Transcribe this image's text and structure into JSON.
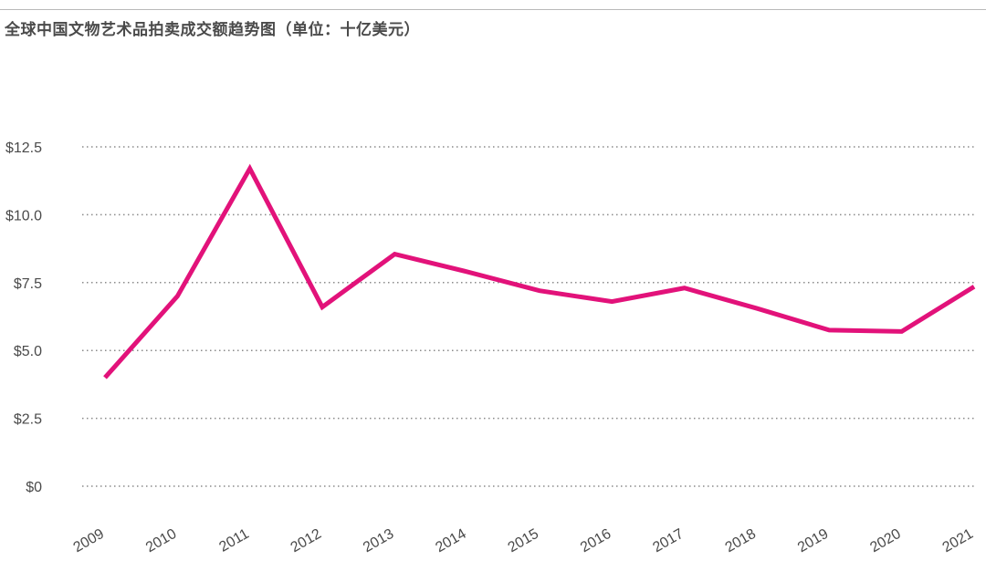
{
  "chart_data": {
    "type": "line",
    "title": "全球中国文物艺术品拍卖成交额趋势图（单位：十亿美元）",
    "xlabel": "",
    "ylabel": "",
    "ylim": [
      0,
      12.5
    ],
    "y_ticks": [
      0,
      2.5,
      5.0,
      7.5,
      10.0,
      12.5
    ],
    "y_tick_labels": [
      "$0",
      "$2.5",
      "$5.0",
      "$7.5",
      "$10.0",
      "$12.5"
    ],
    "categories": [
      "2009",
      "2010",
      "2011",
      "2012",
      "2013",
      "2014",
      "2015",
      "2016",
      "2017",
      "2018",
      "2019",
      "2020",
      "2021"
    ],
    "series": [
      {
        "values": [
          4.0,
          7.0,
          11.7,
          6.6,
          8.55,
          7.9,
          7.2,
          6.8,
          7.3,
          6.55,
          5.75,
          5.7,
          7.35
        ]
      }
    ],
    "grid": true,
    "grid_style": "dotted horizontal",
    "line_color": "#e2127a",
    "legend": "none"
  }
}
